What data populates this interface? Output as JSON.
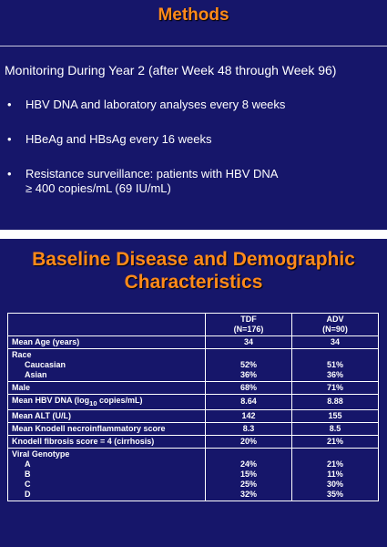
{
  "slides": [
    {
      "title": "Methods",
      "intro": "Monitoring During Year 2 (after Week 48 through Week 96)",
      "bullets": [
        {
          "lines": [
            "HBV DNA and laboratory analyses every 8 weeks"
          ]
        },
        {
          "lines": [
            "HBeAg and HBsAg every 16 weeks"
          ]
        },
        {
          "lines": [
            "Resistance surveillance: patients with HBV DNA",
            "≥ 400 copies/mL (69 IU/mL)"
          ]
        }
      ]
    },
    {
      "title_lines": [
        "Baseline Disease and Demographic",
        "Characteristics"
      ],
      "table": {
        "header": [
          {
            "lines": [
              "TDF",
              "(N=176)"
            ]
          },
          {
            "lines": [
              "ADV",
              "(N=90)"
            ]
          }
        ],
        "rows": [
          {
            "label": [
              "Mean Age (years)"
            ],
            "cells": [
              [
                "34"
              ],
              [
                "34"
              ]
            ]
          },
          {
            "label": [
              "Race",
              "Caucasian",
              "Asian"
            ],
            "cells": [
              [
                "52%",
                "36%"
              ],
              [
                "51%",
                "36%"
              ]
            ]
          },
          {
            "label": [
              "Male"
            ],
            "cells": [
              [
                "68%"
              ],
              [
                "71%"
              ]
            ]
          },
          {
            "label_parts": [
              "Mean HBV DNA (log",
              "10",
              " copies/mL)"
            ],
            "cells": [
              [
                "8.64"
              ],
              [
                "8.88"
              ]
            ]
          },
          {
            "label": [
              "Mean ALT (U/L)"
            ],
            "cells": [
              [
                "142"
              ],
              [
                "155"
              ]
            ]
          },
          {
            "label": [
              "Mean Knodell necroinflammatory  score"
            ],
            "cells": [
              [
                "8.3"
              ],
              [
                "8.5"
              ]
            ]
          },
          {
            "label": [
              "Knodell fibrosis score = 4 (cirrhosis)"
            ],
            "cells": [
              [
                "20%"
              ],
              [
                "21%"
              ]
            ]
          },
          {
            "label": [
              "Viral Genotype",
              "A",
              "B",
              "C",
              "D"
            ],
            "cells": [
              [
                "24%",
                "15%",
                "25%",
                "32%"
              ],
              [
                "21%",
                "11%",
                "30%",
                "35%"
              ]
            ]
          }
        ]
      }
    }
  ]
}
